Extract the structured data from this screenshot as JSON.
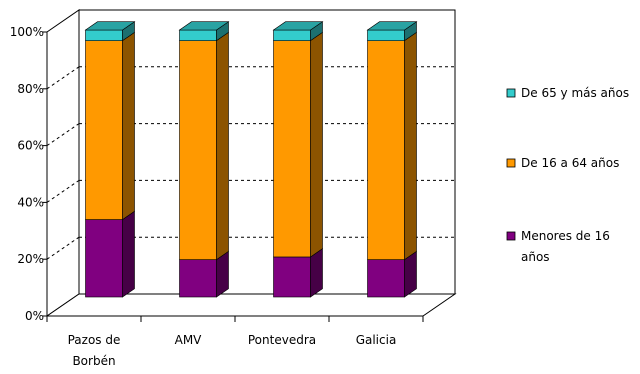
{
  "chart_data": {
    "type": "bar",
    "stacked": true,
    "percent": true,
    "three_d": true,
    "categories": [
      "Pazos de\nBorbén",
      "AMV",
      "Pontevedra",
      "Galicia"
    ],
    "series": [
      {
        "name": "Menores de 16\naños",
        "values": [
          29,
          14,
          15,
          14
        ],
        "color": "#800080"
      },
      {
        "name": "De 16 a 64 años",
        "values": [
          67,
          82,
          81,
          82
        ],
        "color": "#FF9900"
      },
      {
        "name": "De 65 y más años",
        "values": [
          4,
          4,
          4,
          4
        ],
        "color": "#33CCCC"
      }
    ],
    "y_ticks": [
      "0%",
      "20%",
      "40%",
      "60%",
      "80%",
      "100%"
    ],
    "ylim": [
      0,
      100
    ],
    "gridlines": "dashed",
    "legend_position": "right",
    "title": "",
    "xlabel": "",
    "ylabel": ""
  }
}
